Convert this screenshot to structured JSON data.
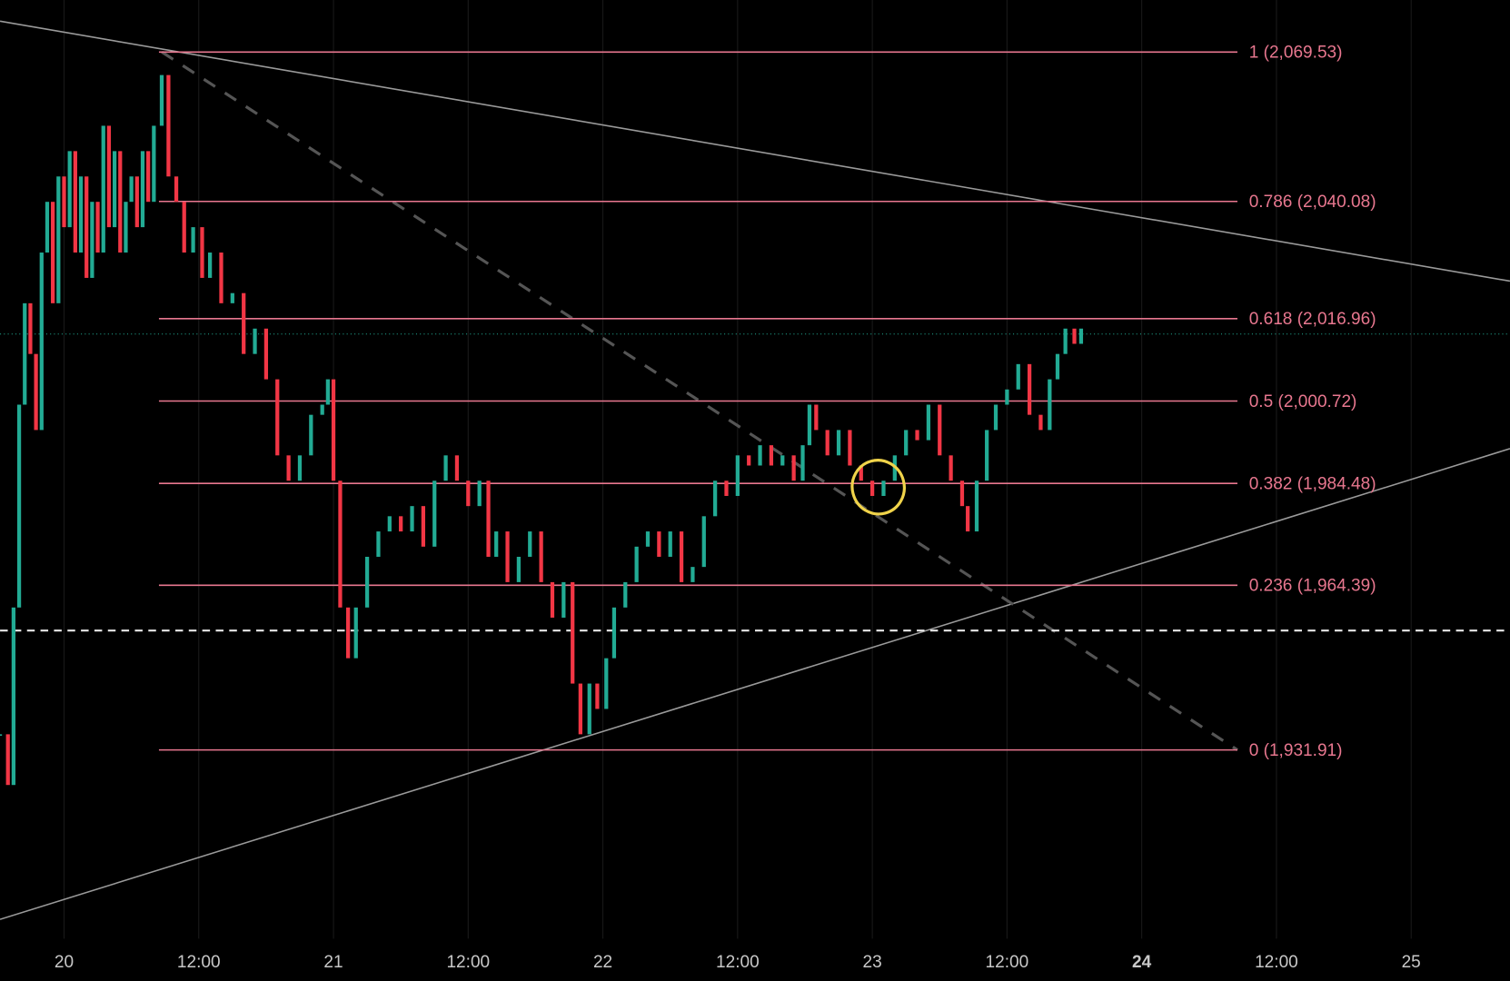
{
  "chart_data": {
    "type": "candlestick",
    "x": [
      -5.7,
      -5.0,
      -4.5,
      -4.0,
      -3.5,
      -3.0,
      -2.5,
      -2.0,
      -1.5,
      -1.0,
      -0.5,
      0,
      0.5,
      1,
      1.5,
      2,
      2.5,
      3,
      3.5,
      4,
      4.5,
      5,
      5.5,
      6,
      6.5,
      7,
      7.5,
      8,
      8.7,
      9.3,
      10,
      10.7,
      11.5,
      12.3,
      13,
      14,
      15,
      16,
      17,
      18,
      19,
      20,
      21,
      22,
      23,
      23.5,
      24,
      24.6,
      25.3,
      26,
      27,
      28,
      29,
      30,
      31,
      32,
      33,
      34,
      35,
      36,
      37,
      37.8,
      38.5,
      39.5,
      40.5,
      41.5,
      42.5,
      43.5,
      44.5,
      45.3,
      46,
      46.8,
      47.5,
      48.3,
      49,
      50,
      51,
      52,
      53,
      54,
      55,
      56,
      57,
      58,
      59,
      60,
      61,
      62,
      63,
      64,
      65,
      65.8,
      66.4,
      67,
      68,
      69,
      70,
      71,
      72,
      73,
      74,
      75,
      76,
      77,
      78,
      79,
      80,
      80.5,
      81.3,
      82.2,
      83,
      84,
      85,
      86,
      87,
      87.8,
      88.5,
      89.2,
      90,
      90.6
    ],
    "close": [
      1935,
      1925,
      1960,
      2000,
      2020,
      2010,
      1995,
      2030,
      2040,
      2020,
      2045,
      2035,
      2050,
      2030,
      2045,
      2025,
      2040,
      2030,
      2055,
      2035,
      2050,
      2030,
      2040,
      2045,
      2035,
      2050,
      2040,
      2055,
      2065,
      2045,
      2040,
      2030,
      2035,
      2025,
      2030,
      2020,
      2022,
      2010,
      2015,
      2005,
      1990,
      1985,
      1990,
      1998,
      2000,
      2005,
      1985,
      1960,
      1950,
      1960,
      1970,
      1975,
      1978,
      1975,
      1980,
      1972,
      1985,
      1990,
      1985,
      1980,
      1985,
      1970,
      1975,
      1965,
      1970,
      1975,
      1965,
      1958,
      1965,
      1945,
      1935,
      1945,
      1940,
      1950,
      1960,
      1965,
      1972,
      1975,
      1970,
      1975,
      1965,
      1968,
      1978,
      1985,
      1982,
      1990,
      1988,
      1992,
      1988,
      1990,
      1985,
      1992,
      2000,
      1995,
      1990,
      1995,
      1988,
      1985,
      1982,
      1985,
      1990,
      1995,
      1993,
      2000,
      1990,
      1985,
      1980,
      1975,
      1985,
      1995,
      2000,
      2003,
      2008,
      1998,
      1995,
      2005,
      2010,
      2015,
      2012,
      2015
    ],
    "up_color": "#22ab94",
    "down_color": "#f23645",
    "xlim": [
      -5.7,
      128.8
    ],
    "ylim": [
      1894.7,
      2079.8
    ],
    "xticks": [
      {
        "value": 0,
        "label": "20"
      },
      {
        "value": 12,
        "label": "12:00"
      },
      {
        "value": 24,
        "label": "21"
      },
      {
        "value": 36,
        "label": "12:00"
      },
      {
        "value": 48,
        "label": "22"
      },
      {
        "value": 60,
        "label": "12:00"
      },
      {
        "value": 72,
        "label": "23"
      },
      {
        "value": 84,
        "label": "12:00"
      },
      {
        "value": 96,
        "label": "24"
      },
      {
        "value": 108,
        "label": "12:00"
      },
      {
        "value": 120,
        "label": "25"
      }
    ],
    "fib_color": "#e8778f",
    "fib_levels": [
      {
        "value": 2069.53,
        "label": "1 (2,069.53)"
      },
      {
        "value": 2040.08,
        "label": "0.786 (2,040.08)"
      },
      {
        "value": 2016.96,
        "label": "0.618 (2,016.96)"
      },
      {
        "value": 2000.72,
        "label": "0.5 (2,000.72)"
      },
      {
        "value": 1984.48,
        "label": "0.382 (1,984.48)"
      },
      {
        "value": 1964.39,
        "label": "0.236 (1,964.39)"
      },
      {
        "value": 1931.91,
        "label": "0 (1,931.91)"
      }
    ],
    "grid": true
  }
}
